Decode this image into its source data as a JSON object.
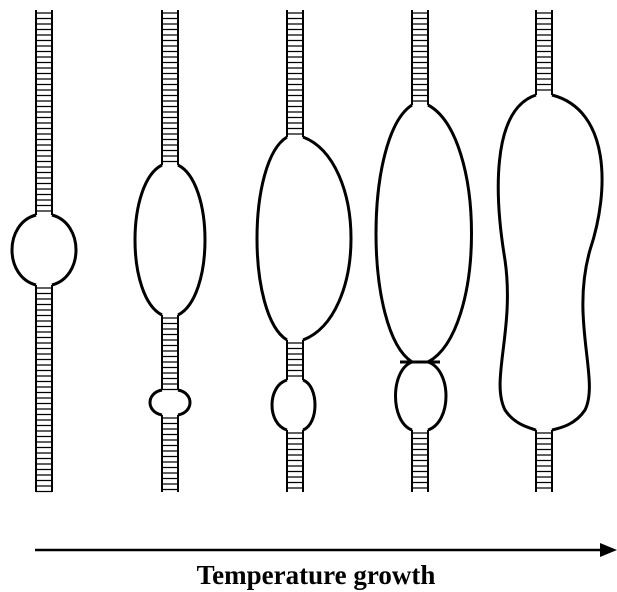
{
  "caption": "Temperature growth"
}
